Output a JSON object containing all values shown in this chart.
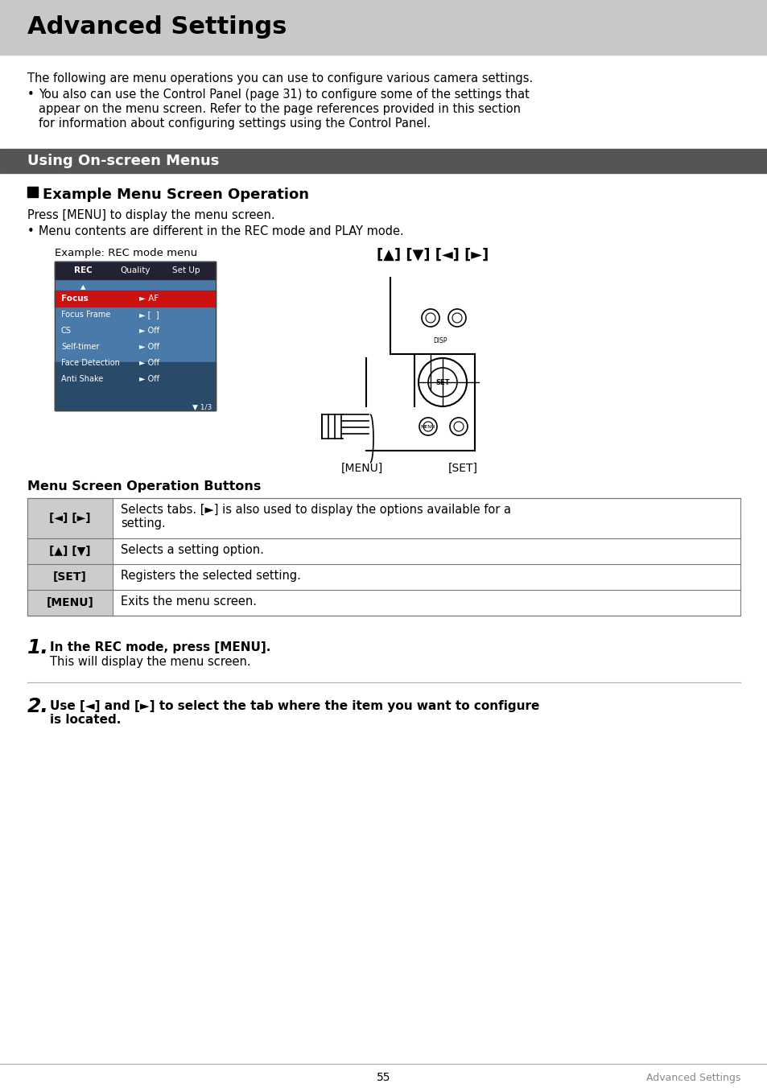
{
  "title": "Advanced Settings",
  "title_bg": "#c8c8c8",
  "section_header": "Using On-screen Menus",
  "section_header_bg": "#555555",
  "section_header_color": "#ffffff",
  "subsection_header": "Example Menu Screen Operation",
  "intro_text1": "The following are menu operations you can use to configure various camera settings.",
  "press_menu_text": "Press [MENU] to display the menu screen.",
  "menu_bullet": "Menu contents are different in the REC mode and PLAY mode.",
  "example_label": "Example: REC mode menu",
  "arrow_label": "[▲] [▼] [◄] [►]",
  "menu_label": "[MENU]",
  "set_label": "[SET]",
  "table_title": "Menu Screen Operation Buttons",
  "table_rows": [
    {
      "key": "[◄] [►]",
      "value": "Selects tabs. [►] is also used to display the options available for a\nsetting."
    },
    {
      "key": "[▲] [▼]",
      "value": "Selects a setting option."
    },
    {
      "key": "[SET]",
      "value": "Registers the selected setting."
    },
    {
      "key": "[MENU]",
      "value": "Exits the menu screen."
    }
  ],
  "step1_bold": "In the REC mode, press [MENU].",
  "step1_sub": "This will display the menu screen.",
  "step2_bold": "Use [◄] and [►] to select the tab where the item you want to configure\nis located.",
  "footer_page": "55",
  "footer_text": "Advanced Settings",
  "bg_color": "#ffffff"
}
